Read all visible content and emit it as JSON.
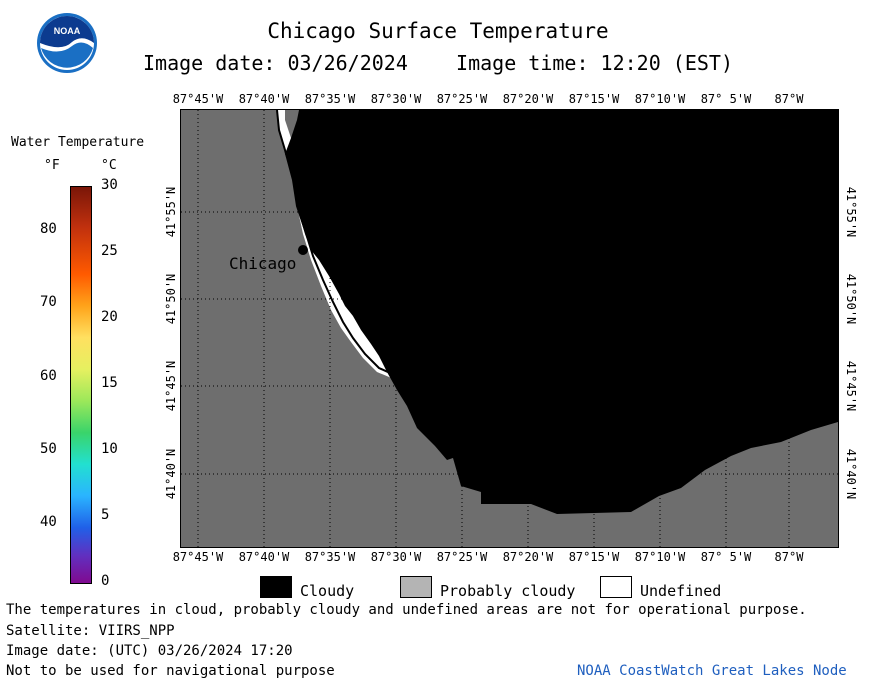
{
  "header": {
    "title": "Chicago Surface Temperature",
    "subtitle": "Image date: 03/26/2024    Image time: 12:20 (EST)"
  },
  "logo": {
    "text": "NOAA"
  },
  "legend": {
    "title": "Water Temperature",
    "unit_f": "°F",
    "unit_c": "°C",
    "f_ticks": [
      "80",
      "70",
      "60",
      "50",
      "40"
    ],
    "c_ticks": [
      "30",
      "25",
      "20",
      "15",
      "10",
      "5",
      "0"
    ]
  },
  "map": {
    "lon_labels": [
      "87°45'W",
      "87°40'W",
      "87°35'W",
      "87°30'W",
      "87°25'W",
      "87°20'W",
      "87°15'W",
      "87°10'W",
      "87° 5'W",
      "87°W"
    ],
    "lat_labels": [
      "41°55'N",
      "41°50'N",
      "41°45'N",
      "41°40'N"
    ],
    "city_label": "Chicago",
    "colors": {
      "land": "#6e6e6e",
      "cloudy": "#000000",
      "undefined": "#ffffff"
    }
  },
  "key": {
    "cloudy": "Cloudy",
    "probably_cloudy": "Probably cloudy",
    "undefined": "Undefined"
  },
  "footer": {
    "note": "The temperatures in cloud, probably cloudy and undefined areas are not for operational purpose.",
    "satellite": "Satellite: VIIRS_NPP",
    "utc_date": "Image date: (UTC) 03/26/2024  17:20",
    "nav": "Not to be used for navigational purpose",
    "credit": "NOAA CoastWatch Great Lakes Node"
  }
}
